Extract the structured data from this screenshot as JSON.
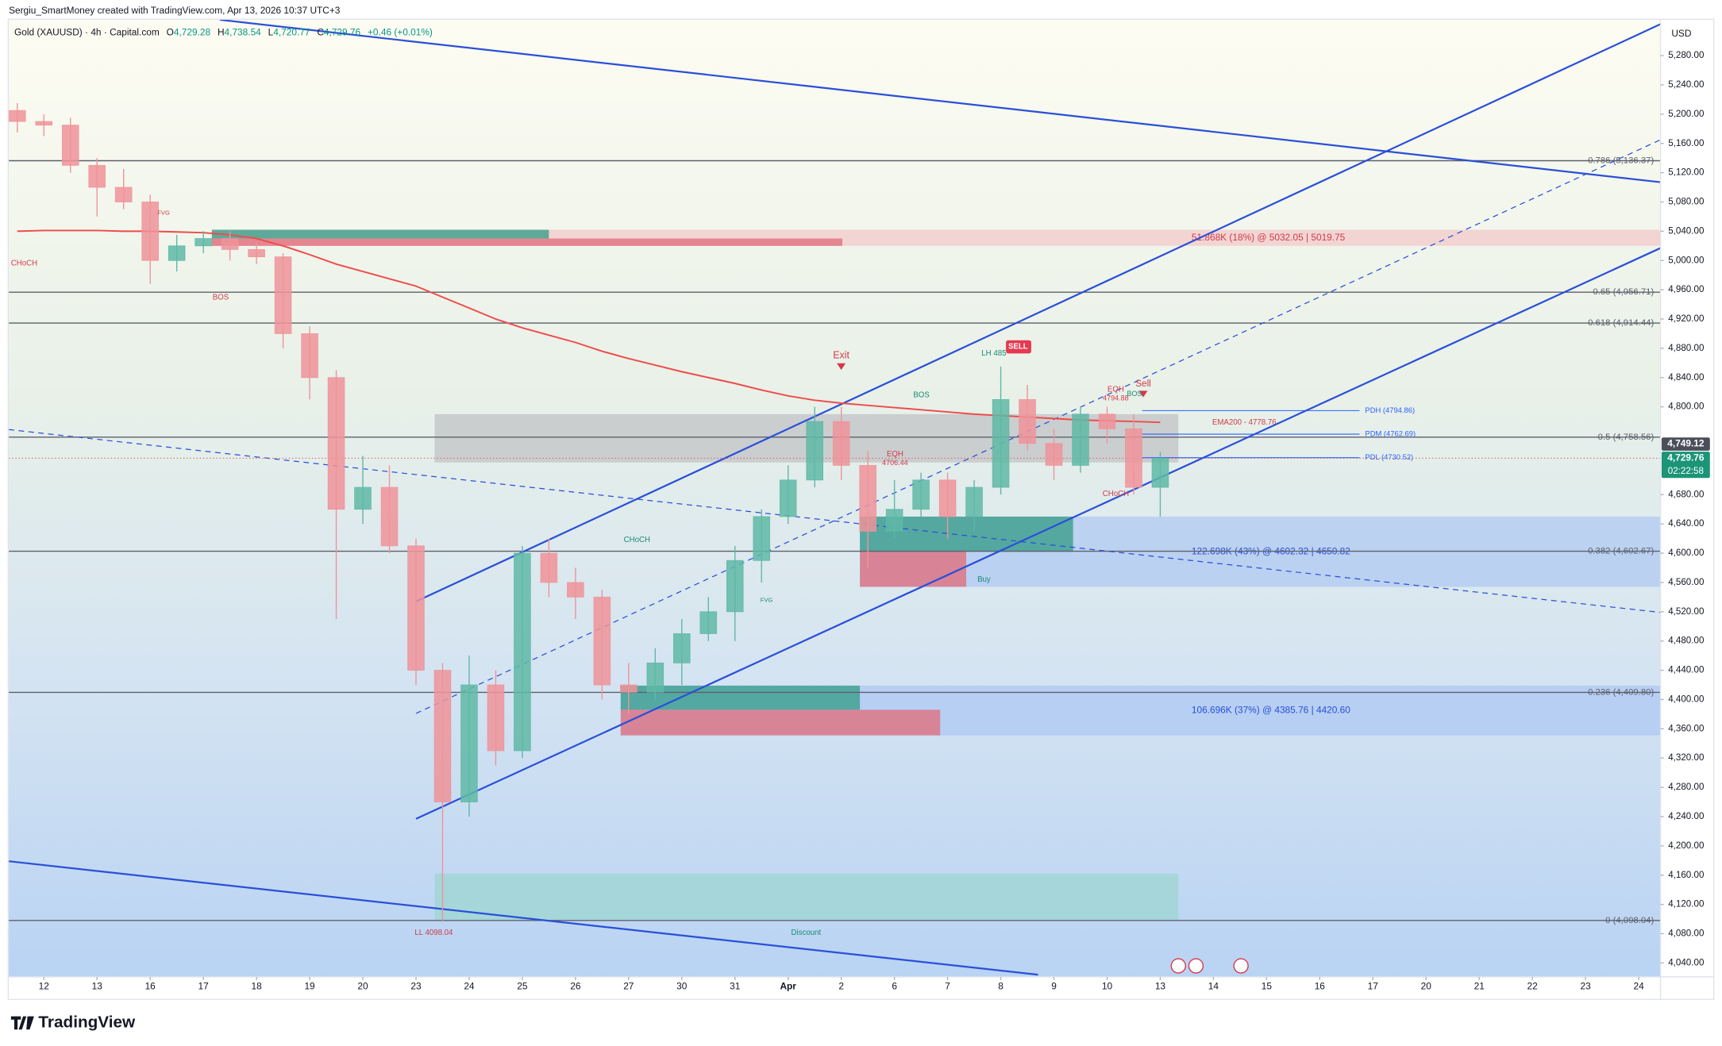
{
  "header": {
    "credit": "Sergiu_SmartMoney created with TradingView.com, Apr 13, 2026 10:37 UTC+3",
    "symbol": "Gold (XAUUSD) · 4h · Capital.com",
    "ohlc": [
      [
        "O",
        "4,729.28"
      ],
      [
        "H",
        "4,738.54"
      ],
      [
        "L",
        "4,720.77"
      ],
      [
        "C",
        "4,729.76"
      ]
    ],
    "change": "+0.46 (+0.01%)"
  },
  "footer": {
    "logo": "TradingView"
  },
  "chart_data": {
    "type": "candlestick",
    "currency": "USD",
    "up_color": "#5fb8a6",
    "down_color": "#ef9399",
    "x": [
      -0.5,
      0,
      0.5,
      1,
      1.5,
      2,
      2.5,
      3,
      3.5,
      4,
      4.5,
      5,
      5.5,
      6,
      6.5,
      7,
      7.5,
      8,
      8.5,
      9,
      9.5,
      10,
      10.5,
      11,
      11.5,
      12,
      12.5,
      13,
      13.5,
      14,
      14.5,
      15,
      15.5,
      16,
      16.5,
      17,
      17.5,
      18,
      18.5,
      19,
      19.5,
      20,
      20.5,
      21
    ],
    "open": [
      5205,
      5190,
      5185,
      5130,
      5100,
      5080,
      5000,
      5020,
      5030,
      5015,
      5005,
      4900,
      4840,
      4660,
      4690,
      4610,
      4440,
      4260,
      4420,
      4330,
      4600,
      4560,
      4540,
      4420,
      4410,
      4450,
      4490,
      4520,
      4590,
      4650,
      4700,
      4780,
      4720,
      4630,
      4660,
      4700,
      4650,
      4690,
      4810,
      4750,
      4720,
      4790,
      4770,
      4690
    ],
    "high": [
      5215,
      5200,
      5195,
      5140,
      5125,
      5090,
      5035,
      5040,
      5040,
      5025,
      5010,
      4910,
      4850,
      4733,
      4720,
      4620,
      4450,
      4460,
      4440,
      4610,
      4620,
      4580,
      4550,
      4450,
      4470,
      4510,
      4540,
      4610,
      4660,
      4720,
      4800,
      4800,
      4740,
      4700,
      4710,
      4710,
      4700,
      4855,
      4830,
      4770,
      4800,
      4800,
      4790,
      4738.54
    ],
    "low": [
      5175,
      5170,
      5120,
      5060,
      5070,
      4968,
      4985,
      5010,
      5000,
      4995,
      4880,
      4810,
      4510,
      4640,
      4600,
      4420,
      4098.04,
      4240,
      4310,
      4320,
      4540,
      4510,
      4400,
      4380,
      4400,
      4420,
      4480,
      4480,
      4560,
      4640,
      4690,
      4700,
      4580,
      4620,
      4650,
      4620,
      4630,
      4680,
      4740,
      4700,
      4710,
      4750,
      4680,
      4650
    ],
    "close": [
      5190,
      5185,
      5130,
      5100,
      5080,
      5000,
      5020,
      5030,
      5015,
      5005,
      4900,
      4840,
      4660,
      4690,
      4610,
      4440,
      4260,
      4420,
      4330,
      4600,
      4560,
      4540,
      4420,
      4410,
      4450,
      4490,
      4520,
      4590,
      4650,
      4700,
      4780,
      4720,
      4630,
      4660,
      4700,
      4650,
      4690,
      4810,
      4750,
      4720,
      4790,
      4770,
      4690,
      4729.76
    ],
    "ema_color": "#f04a4a",
    "ema": [
      5040,
      5041,
      5041,
      5041,
      5040,
      5040,
      5039,
      5038,
      5035,
      5030,
      5020,
      5008,
      4995,
      4985,
      4975,
      4965,
      4950,
      4935,
      4920,
      4908,
      4898,
      4888,
      4876,
      4866,
      4857,
      4848,
      4840,
      4832,
      4823,
      4815,
      4809,
      4805,
      4802,
      4799,
      4796,
      4793,
      4790,
      4788,
      4786,
      4784,
      4782,
      4781,
      4780,
      4778.76
    ],
    "xlim": [
      -0.66,
      30.41
    ],
    "ylim": [
      4021,
      5329
    ],
    "grid": false,
    "xticks": [
      {
        "value": 0,
        "label": "12"
      },
      {
        "value": 1,
        "label": "13"
      },
      {
        "value": 2,
        "label": "16"
      },
      {
        "value": 3,
        "label": "17"
      },
      {
        "value": 4,
        "label": "18"
      },
      {
        "value": 5,
        "label": "19"
      },
      {
        "value": 6,
        "label": "20"
      },
      {
        "value": 7,
        "label": "23"
      },
      {
        "value": 8,
        "label": "24"
      },
      {
        "value": 9,
        "label": "25"
      },
      {
        "value": 10,
        "label": "26"
      },
      {
        "value": 11,
        "label": "27"
      },
      {
        "value": 12,
        "label": "30"
      },
      {
        "value": 13,
        "label": "31"
      },
      {
        "value": 14,
        "label": "Apr"
      },
      {
        "value": 15,
        "label": "2"
      },
      {
        "value": 16,
        "label": "6"
      },
      {
        "value": 17,
        "label": "7"
      },
      {
        "value": 18,
        "label": "8"
      },
      {
        "value": 19,
        "label": "9"
      },
      {
        "value": 20,
        "label": "10"
      },
      {
        "value": 21,
        "label": "13"
      },
      {
        "value": 22,
        "label": "14"
      },
      {
        "value": 23,
        "label": "15"
      },
      {
        "value": 24,
        "label": "16"
      },
      {
        "value": 25,
        "label": "17"
      },
      {
        "value": 26,
        "label": "20"
      },
      {
        "value": 27,
        "label": "21"
      },
      {
        "value": 28,
        "label": "22"
      },
      {
        "value": 29,
        "label": "23"
      },
      {
        "value": 30,
        "label": "24"
      }
    ],
    "yticks": [
      {
        "value": 5280,
        "label": "5,280.00"
      },
      {
        "value": 5240,
        "label": "5,240.00"
      },
      {
        "value": 5200,
        "label": "5,200.00"
      },
      {
        "value": 5160,
        "label": "5,160.00"
      },
      {
        "value": 5120,
        "label": "5,120.00"
      },
      {
        "value": 5080,
        "label": "5,080.00"
      },
      {
        "value": 5040,
        "label": "5,040.00"
      },
      {
        "value": 5000,
        "label": "5,000.00"
      },
      {
        "value": 4960,
        "label": "4,960.00"
      },
      {
        "value": 4920,
        "label": "4,920.00"
      },
      {
        "value": 4880,
        "label": "4,880.00"
      },
      {
        "value": 4840,
        "label": "4,840.00"
      },
      {
        "value": 4800,
        "label": "4,800.00"
      },
      {
        "value": 4680,
        "label": "4,680.00"
      },
      {
        "value": 4640,
        "label": "4,640.00"
      },
      {
        "value": 4600,
        "label": "4,600.00"
      },
      {
        "value": 4560,
        "label": "4,560.00"
      },
      {
        "value": 4520,
        "label": "4,520.00"
      },
      {
        "value": 4480,
        "label": "4,480.00"
      },
      {
        "value": 4440,
        "label": "4,440.00"
      },
      {
        "value": 4400,
        "label": "4,400.00"
      },
      {
        "value": 4360,
        "label": "4,360.00"
      },
      {
        "value": 4320,
        "label": "4,320.00"
      },
      {
        "value": 4280,
        "label": "4,280.00"
      },
      {
        "value": 4240,
        "label": "4,240.00"
      },
      {
        "value": 4200,
        "label": "4,200.00"
      },
      {
        "value": 4160,
        "label": "4,160.00"
      },
      {
        "value": 4120,
        "label": "4,120.00"
      },
      {
        "value": 4080,
        "label": "4,080.00"
      },
      {
        "value": 4040,
        "label": "4,040.00"
      }
    ],
    "level_color": "#5d606b",
    "levels": [
      {
        "value": 5136.37,
        "label": "0.786 (5,136.37)"
      },
      {
        "value": 4956.71,
        "label": "0.65 (4,956.71)"
      },
      {
        "value": 4914.44,
        "label": "0.618 (4,914.44)"
      },
      {
        "value": 4758.56,
        "label": "0.5 (4,758.56)"
      },
      {
        "value": 4602.67,
        "label": "0.382 (4,602.67)"
      },
      {
        "value": 4409.8,
        "label": "0.236 (4,409.80)"
      },
      {
        "value": 4098.04,
        "label": "0 (4,098.04)"
      }
    ],
    "pd_color": "#2962ff",
    "pd_levels": [
      {
        "value": 4794.86,
        "label": "PDH (4794.86)"
      },
      {
        "value": 4762.69,
        "label": "PDM (4762.69)"
      },
      {
        "value": 4730.52,
        "label": "PDL (4730.52)"
      }
    ],
    "trend_color": "#2a4fd8",
    "trendlines": [
      {
        "x": [
          3.31,
          30.41
        ],
        "y": [
          5329,
          5107
        ],
        "dashed": false
      },
      {
        "x": [
          -0.66,
          18.7
        ],
        "y": [
          4179,
          4024
        ],
        "dashed": false
      },
      {
        "x": [
          7,
          30.41
        ],
        "y": [
          4534,
          5323
        ],
        "dashed": false
      },
      {
        "x": [
          7,
          30.41
        ],
        "y": [
          4237,
          5017
        ],
        "dashed": false
      },
      {
        "x": [
          7,
          30.41
        ],
        "y": [
          4381,
          5165
        ],
        "dashed": true
      },
      {
        "x": [
          -0.66,
          30.41
        ],
        "y": [
          4769,
          4519
        ],
        "dashed": true
      }
    ],
    "zones": [
      {
        "x": [
          3.16,
          30.41
        ],
        "y": [
          5020,
          5042
        ],
        "color": "#f3c3c6",
        "label": "51.868K (18%) @ 5032.05 | 5019.75",
        "label_color": "#d23a4a"
      },
      {
        "x": [
          3.16,
          9.5
        ],
        "y": [
          5030,
          5042
        ],
        "color": "#3a9e8c"
      },
      {
        "x": [
          3.16,
          15.02
        ],
        "y": [
          5020,
          5030
        ],
        "color": "#e0707f"
      },
      {
        "x": [
          7.35,
          21.34
        ],
        "y": [
          4724,
          4790
        ],
        "color": "#c4c6c8"
      },
      {
        "x": [
          15.35,
          30.41
        ],
        "y": [
          4554,
          4650
        ],
        "color": "#a9c5f2",
        "label": "122.698K (43%) @ 4602.32 | 4650.82",
        "label_color": "#2a4fd8"
      },
      {
        "x": [
          15.35,
          19.36
        ],
        "y": [
          4602,
          4650
        ],
        "color": "#3a9e8c"
      },
      {
        "x": [
          15.35,
          17.35
        ],
        "y": [
          4554,
          4602
        ],
        "color": "#e0707f"
      },
      {
        "x": [
          10.85,
          30.41
        ],
        "y": [
          4351,
          4419
        ],
        "color": "#a9c5f2",
        "label": "106.696K (37%) @ 4385.76 | 4420.60",
        "label_color": "#2a4fd8"
      },
      {
        "x": [
          10.85,
          15.35
        ],
        "y": [
          4386,
          4419
        ],
        "color": "#3a9e8c"
      },
      {
        "x": [
          10.85,
          16.86
        ],
        "y": [
          4351,
          4386
        ],
        "color": "#e0707f"
      },
      {
        "x": [
          7.35,
          21.34
        ],
        "y": [
          4099,
          4162
        ],
        "color": "#9fd6d2"
      }
    ],
    "annotations": [
      "CHoCH",
      "BOS",
      "FVG",
      "CHoCH",
      "Exit",
      "BOS",
      "EQH",
      "4706.44",
      "LH 485",
      "SELL",
      "EQH",
      "4794.88",
      "Sell",
      "BOS",
      "CHoCH",
      "EMA200 - 4778.76",
      "Buy",
      "LL 4098.04",
      "Discount",
      "FVG"
    ],
    "price_tags": [
      {
        "value": 4749.12,
        "label": "4,749.12",
        "color": "#4a4e59"
      },
      {
        "value": 4729.76,
        "label": "4,729.76",
        "sub": "02:22:58",
        "color": "#1b9478"
      }
    ]
  }
}
